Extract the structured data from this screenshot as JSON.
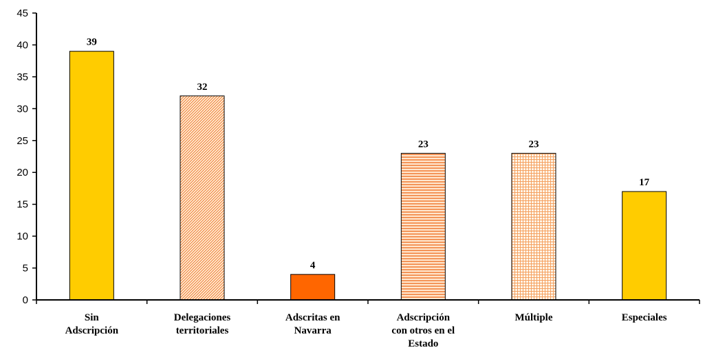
{
  "chart_data": {
    "type": "bar",
    "categories": [
      [
        "Sin",
        "Adscripción"
      ],
      [
        "Delegaciones",
        "territoriales"
      ],
      [
        "Adscritas en",
        "Navarra"
      ],
      [
        "Adscripción",
        "con otros en el",
        "Estado"
      ],
      [
        "Múltiple"
      ],
      [
        "Especiales"
      ]
    ],
    "values": [
      39,
      32,
      4,
      23,
      23,
      17
    ],
    "fills": [
      "solid-yellow",
      "diagonal-orange-hatch",
      "solid-orange",
      "horizontal-orange-lines",
      "orange-grid",
      "solid-yellow"
    ],
    "colors": {
      "yellow": "#FFCC00",
      "orange": "#FF6600",
      "hatch_line": "#F07830",
      "hatch_bg": "#FFF0D8",
      "border": "#000000"
    },
    "ylim": [
      0,
      45
    ],
    "yticks": [
      0,
      5,
      10,
      15,
      20,
      25,
      30,
      35,
      40,
      45
    ],
    "title": "",
    "xlabel": "",
    "ylabel": "",
    "grid": false,
    "legend": "none"
  }
}
